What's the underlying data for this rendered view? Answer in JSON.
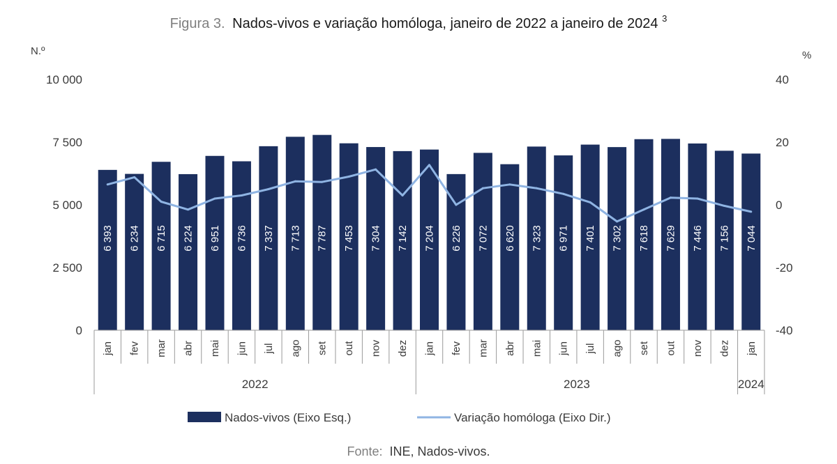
{
  "figure": {
    "title_prefix": "Figura 3.",
    "title_main": "Nados-vivos e variação homóloga, janeiro de 2022 a janeiro de 2024",
    "title_sup": "3",
    "source_prefix": "Fonte:",
    "source_text": "INE, Nados-vivos."
  },
  "colors": {
    "bar": "#1c2f5e",
    "line": "#8fb4e3",
    "axis": "#9a9a9a"
  },
  "chart_data": {
    "type": "bar",
    "categories": [
      "jan",
      "fev",
      "mar",
      "abr",
      "mai",
      "jun",
      "jul",
      "ago",
      "set",
      "out",
      "nov",
      "dez",
      "jan",
      "fev",
      "mar",
      "abr",
      "mai",
      "jun",
      "jul",
      "ago",
      "set",
      "out",
      "nov",
      "dez",
      "jan"
    ],
    "category_labels": [
      "jan",
      "fev",
      "mar",
      "abr",
      "mai",
      "jun",
      "jul",
      "ago",
      "set",
      "out",
      "nov",
      "dez",
      "jan",
      "fev",
      "mar",
      "abr",
      "mai",
      "jun",
      "jul",
      "ago",
      "set",
      "out",
      "nov",
      "dez",
      "jan"
    ],
    "year_groups": [
      {
        "label": "2022",
        "start": 0,
        "count": 12
      },
      {
        "label": "2023",
        "start": 12,
        "count": 12
      },
      {
        "label": "2024",
        "start": 24,
        "count": 1
      }
    ],
    "series": [
      {
        "name": "Nados-vivos (Eixo Esq.)",
        "type": "bar",
        "axis": "left",
        "values": [
          6393,
          6234,
          6715,
          6224,
          6951,
          6736,
          7337,
          7713,
          7787,
          7453,
          7304,
          7142,
          7204,
          6226,
          7072,
          6620,
          7323,
          6971,
          7401,
          7302,
          7618,
          7629,
          7446,
          7156,
          7044
        ],
        "labels": [
          "6 393",
          "6 234",
          "6 715",
          "6 224",
          "6 951",
          "6 736",
          "7 337",
          "7 713",
          "7 787",
          "7 453",
          "7 304",
          "7 142",
          "7 204",
          "6 226",
          "7 072",
          "6 620",
          "7 323",
          "6 971",
          "7 401",
          "7 302",
          "7 618",
          "7 629",
          "7 446",
          "7 156",
          "7 044"
        ]
      },
      {
        "name": "Variação homóloga (Eixo Dir.)",
        "type": "line",
        "axis": "right",
        "values": [
          6.5,
          8.8,
          1.0,
          -1.5,
          2.0,
          3.0,
          5.0,
          7.5,
          7.3,
          9.0,
          11.3,
          3.0,
          12.7,
          0.0,
          5.3,
          6.5,
          5.3,
          3.5,
          0.8,
          -5.3,
          -1.5,
          2.3,
          2.0,
          -0.3,
          -2.2
        ]
      }
    ],
    "y_left": {
      "unit": "N.º",
      "ylim": [
        0,
        10000
      ],
      "ticks": [
        0,
        2500,
        5000,
        7500,
        10000
      ],
      "tick_labels": [
        "0",
        "2 500",
        "5 000",
        "7 500",
        "10 000"
      ]
    },
    "y_right": {
      "unit": "%",
      "ylim": [
        -40,
        40
      ],
      "ticks": [
        -40,
        -20,
        0,
        20,
        40
      ],
      "tick_labels": [
        "-40",
        "-20",
        "0",
        "20",
        "40"
      ]
    },
    "legend_position": "bottom",
    "grid": false
  }
}
